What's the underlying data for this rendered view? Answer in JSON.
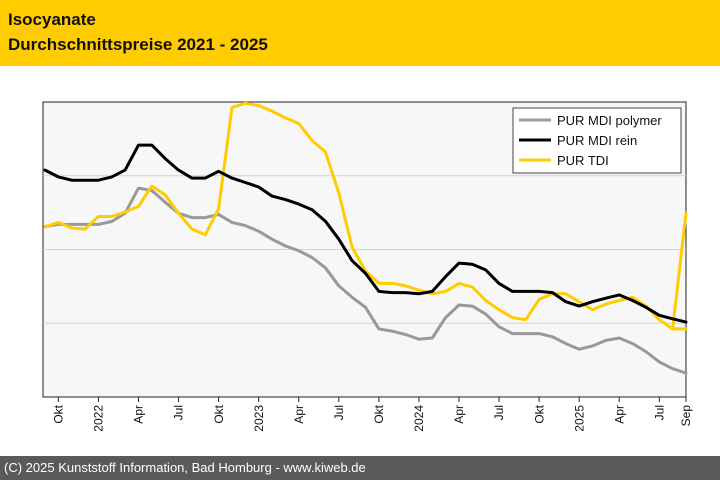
{
  "header": {
    "title_line1": "Isocyanate",
    "title_line2": "Durchschnittspreise 2021 - 2025"
  },
  "footer": {
    "text": "(C) 2025 Kunststoff Information, Bad Homburg - www.kiweb.de"
  },
  "colors": {
    "header_bg": "#ffcc00",
    "footer_bg": "#5a5a5a",
    "plot_bg": "#f7f7f7"
  },
  "chart_data": {
    "type": "line",
    "title": "",
    "xlabel": "",
    "ylabel": "",
    "y_tick_labels_shown": false,
    "grid": "horizontal",
    "legend_position": "top-right",
    "ylim": [
      0,
      100
    ],
    "x": [
      "2021-09",
      "2021-10",
      "2021-11",
      "2021-12",
      "2022-01",
      "2022-02",
      "2022-03",
      "2022-04",
      "2022-05",
      "2022-06",
      "2022-07",
      "2022-08",
      "2022-09",
      "2022-10",
      "2022-11",
      "2022-12",
      "2023-01",
      "2023-02",
      "2023-03",
      "2023-04",
      "2023-05",
      "2023-06",
      "2023-07",
      "2023-08",
      "2023-09",
      "2023-10",
      "2023-11",
      "2023-12",
      "2024-01",
      "2024-02",
      "2024-03",
      "2024-04",
      "2024-05",
      "2024-06",
      "2024-07",
      "2024-08",
      "2024-09",
      "2024-10",
      "2024-11",
      "2024-12",
      "2025-01",
      "2025-02",
      "2025-03",
      "2025-04",
      "2025-05",
      "2025-06",
      "2025-07",
      "2025-08",
      "2025-09"
    ],
    "x_tick_labels": [
      {
        "x": "2021-10",
        "label": "Okt"
      },
      {
        "x": "2022-01",
        "label": "2022"
      },
      {
        "x": "2022-04",
        "label": "Apr"
      },
      {
        "x": "2022-07",
        "label": "Jul"
      },
      {
        "x": "2022-10",
        "label": "Okt"
      },
      {
        "x": "2023-01",
        "label": "2023"
      },
      {
        "x": "2023-04",
        "label": "Apr"
      },
      {
        "x": "2023-07",
        "label": "Jul"
      },
      {
        "x": "2023-10",
        "label": "Okt"
      },
      {
        "x": "2024-01",
        "label": "2024"
      },
      {
        "x": "2024-04",
        "label": "Apr"
      },
      {
        "x": "2024-07",
        "label": "Jul"
      },
      {
        "x": "2024-10",
        "label": "Okt"
      },
      {
        "x": "2025-01",
        "label": "2025"
      },
      {
        "x": "2025-04",
        "label": "Apr"
      },
      {
        "x": "2025-07",
        "label": "Jul"
      },
      {
        "x": "2025-09",
        "label": "Sep"
      }
    ],
    "series": [
      {
        "name": "PUR MDI polymer",
        "color": "#999999",
        "values": [
          57.8,
          58.5,
          58.5,
          58.5,
          58.5,
          59.5,
          62.3,
          70.8,
          70.0,
          66.0,
          62.3,
          60.8,
          60.8,
          61.9,
          59.2,
          58.1,
          56.2,
          53.5,
          51.2,
          49.6,
          47.3,
          43.8,
          37.7,
          33.8,
          30.4,
          23.1,
          22.3,
          21.2,
          19.6,
          20.0,
          26.9,
          31.2,
          30.8,
          28.1,
          23.8,
          21.5,
          21.5,
          21.5,
          20.4,
          18.1,
          16.2,
          17.3,
          19.2,
          20.0,
          18.1,
          15.4,
          11.9,
          9.6,
          8.1
        ]
      },
      {
        "name": "PUR MDI rein",
        "color": "#000000",
        "values": [
          76.9,
          74.6,
          73.5,
          73.5,
          73.5,
          74.6,
          76.9,
          85.4,
          85.4,
          80.8,
          76.9,
          74.2,
          74.2,
          76.5,
          74.2,
          72.7,
          71.2,
          68.1,
          66.9,
          65.4,
          63.5,
          59.6,
          53.5,
          46.2,
          41.9,
          35.8,
          35.4,
          35.4,
          35.0,
          35.8,
          40.8,
          45.4,
          45.0,
          43.1,
          38.5,
          35.8,
          35.8,
          35.8,
          35.4,
          32.3,
          30.8,
          32.3,
          33.5,
          34.6,
          32.7,
          30.4,
          27.7,
          26.5,
          25.4
        ]
      },
      {
        "name": "PUR TDI",
        "color": "#ffcc00",
        "values": [
          57.7,
          59.2,
          57.3,
          56.9,
          61.2,
          61.2,
          62.7,
          64.6,
          71.5,
          68.5,
          62.3,
          56.9,
          55.0,
          63.8,
          98.1,
          99.6,
          98.8,
          96.9,
          94.6,
          92.7,
          86.9,
          83.1,
          69.2,
          50.8,
          42.7,
          38.5,
          38.5,
          37.7,
          36.2,
          35.0,
          35.8,
          38.5,
          37.3,
          32.7,
          29.6,
          26.9,
          26.2,
          33.1,
          35.0,
          35.0,
          32.3,
          29.6,
          31.5,
          32.7,
          33.8,
          30.8,
          26.2,
          23.1,
          23.1
        ]
      },
      {
        "name": "",
        "color": "#ffcc00",
        "values": [
          null,
          null,
          null,
          null,
          null,
          null,
          null,
          null,
          null,
          null,
          null,
          null,
          null,
          null,
          null,
          null,
          null,
          null,
          null,
          null,
          null,
          null,
          null,
          null,
          null,
          null,
          null,
          null,
          null,
          null,
          null,
          null,
          null,
          null,
          null,
          null,
          null,
          null,
          null,
          null,
          null,
          null,
          null,
          null,
          null,
          null,
          null,
          23.1,
          62.3
        ]
      }
    ]
  }
}
